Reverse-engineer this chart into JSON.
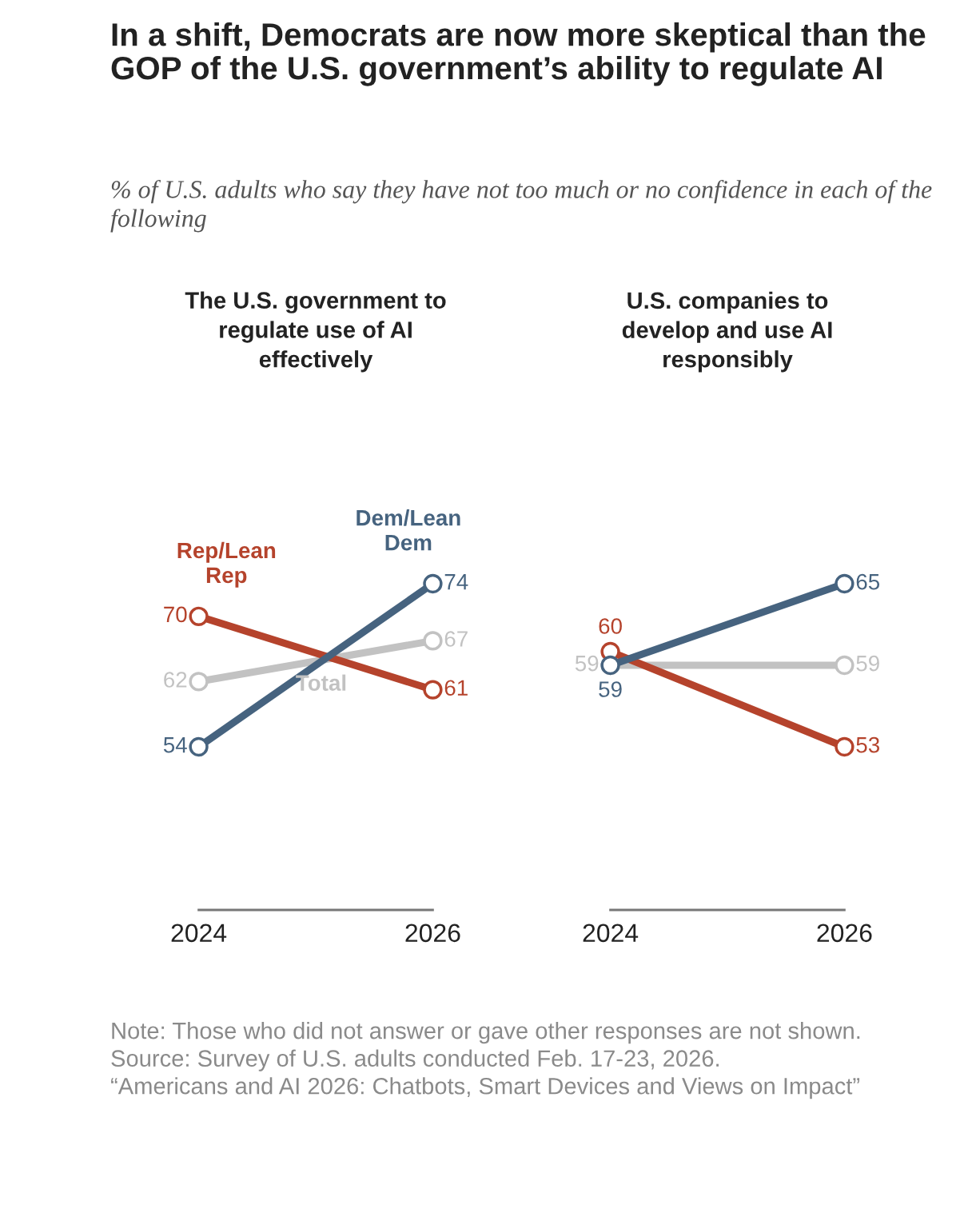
{
  "chart_data": [
    {
      "type": "other",
      "title": "In a shift, Democrats are now more skeptical than the GOP of the U.S. government’s ability to regulate AI",
      "subtitle": "% of U.S. adults who say they have not too much or no confidence in each of the following",
      "annotations": [
        "Note: Those who did not answer or gave other responses are not shown.",
        "Source: Survey of U.S. adults conducted Feb. 17-23, 2026.",
        "“Americans and AI 2026: Chatbots, Smart Devices and Views on Impact”"
      ]
    },
    {
      "type": "line",
      "title": "The U.S. government to\nregulate use of AI\neffectively",
      "categories": [
        "2024",
        "2026"
      ],
      "tick_labels": "x",
      "marker": "circle",
      "data_labels": true,
      "series": [
        {
          "name": "Total",
          "color": "#c2c2c2",
          "values": [
            62,
            67
          ]
        },
        {
          "name": "Rep/Lean\nRep",
          "color": "#b5432c",
          "values": [
            70,
            61
          ]
        },
        {
          "name": "Dem/Lean\nDem",
          "color": "#46637f",
          "values": [
            54,
            74
          ]
        }
      ]
    },
    {
      "type": "line",
      "title": "U.S. companies to\ndevelop and use AI\nresponsibly",
      "categories": [
        "2024",
        "2026"
      ],
      "tick_labels": "x",
      "marker": "circle",
      "data_labels": true,
      "series": [
        {
          "color": "#c2c2c2",
          "values": [
            59,
            59
          ]
        },
        {
          "color": "#b5432c",
          "values": [
            60,
            53
          ]
        },
        {
          "color": "#46637f",
          "values": [
            59,
            65
          ]
        }
      ]
    }
  ]
}
